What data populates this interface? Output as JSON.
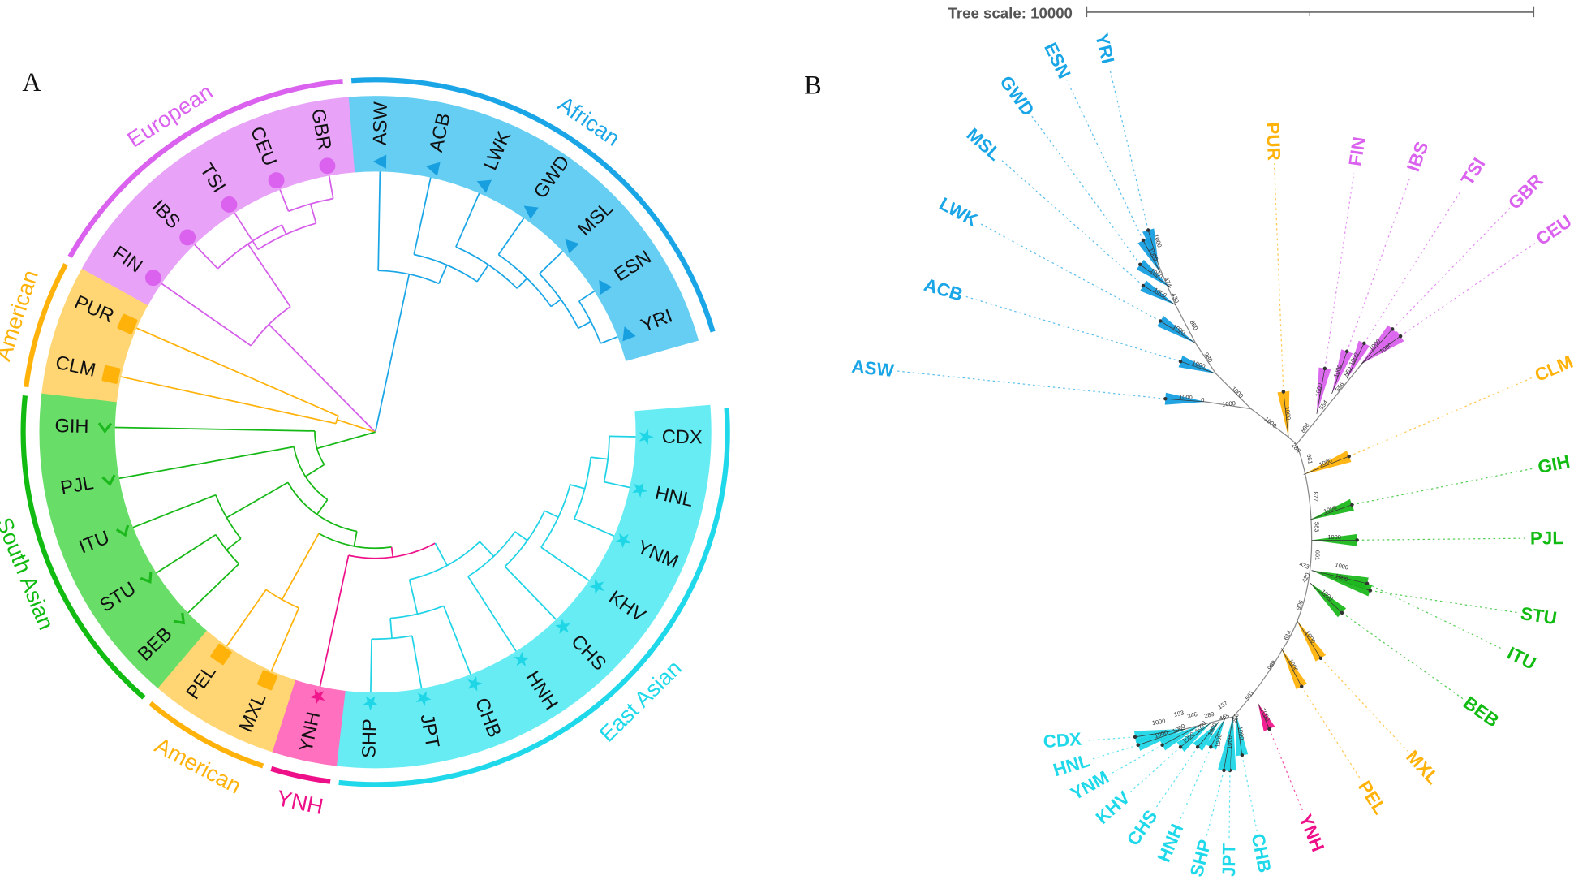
{
  "colors": {
    "African": {
      "band": "#66CEF3",
      "mark": "#179FE0",
      "arc": "#1AA6E6",
      "branch": "#1AA6E6"
    },
    "East Asian": {
      "band": "#68ECF4",
      "mark": "#1FD6E6",
      "arc": "#1FD9EA",
      "branch": "#1FD3E6"
    },
    "European": {
      "band": "#E8A2F8",
      "mark": "#DA62EE",
      "arc": "#DA62EE",
      "branch": "#D55DEA"
    },
    "American": {
      "band": "#FFD673",
      "mark": "#FFB20A",
      "arc": "#FFB20A",
      "branch": "#FFB20A"
    },
    "South Asian": {
      "band": "#68DE68",
      "mark": "#1DB81D",
      "arc": "#12BB12",
      "branch": "#16B816"
    },
    "YNH": {
      "band": "#FF70BE",
      "mark": "#F0168C",
      "arc": "#EE1088",
      "branch": "#EE1088"
    }
  },
  "panel_a": {
    "label": "A",
    "leaves": [
      {
        "name": "ASW",
        "group": "African"
      },
      {
        "name": "ACB",
        "group": "African"
      },
      {
        "name": "LWK",
        "group": "African"
      },
      {
        "name": "GWD",
        "group": "African"
      },
      {
        "name": "MSL",
        "group": "African"
      },
      {
        "name": "ESN",
        "group": "African"
      },
      {
        "name": "YRI",
        "group": "African"
      },
      {
        "name": "CDX",
        "group": "East Asian"
      },
      {
        "name": "HNL",
        "group": "East Asian"
      },
      {
        "name": "YNM",
        "group": "East Asian"
      },
      {
        "name": "KHV",
        "group": "East Asian"
      },
      {
        "name": "CHS",
        "group": "East Asian"
      },
      {
        "name": "HNH",
        "group": "East Asian"
      },
      {
        "name": "CHB",
        "group": "East Asian"
      },
      {
        "name": "JPT",
        "group": "East Asian"
      },
      {
        "name": "SHP",
        "group": "East Asian"
      },
      {
        "name": "YNH",
        "group": "YNH"
      },
      {
        "name": "MXL",
        "group": "American"
      },
      {
        "name": "PEL",
        "group": "American"
      },
      {
        "name": "BEB",
        "group": "South Asian"
      },
      {
        "name": "STU",
        "group": "South Asian"
      },
      {
        "name": "ITU",
        "group": "South Asian"
      },
      {
        "name": "PJL",
        "group": "South Asian"
      },
      {
        "name": "GIH",
        "group": "South Asian"
      },
      {
        "name": "CLM",
        "group": "American"
      },
      {
        "name": "PUR",
        "group": "American"
      },
      {
        "name": "FIN",
        "group": "European"
      },
      {
        "name": "IBS",
        "group": "European"
      },
      {
        "name": "TSI",
        "group": "European"
      },
      {
        "name": "CEU",
        "group": "European"
      },
      {
        "name": "GBR",
        "group": "European"
      }
    ],
    "group_labels": [
      {
        "text": "African",
        "group": "African"
      },
      {
        "text": "East Asian",
        "group": "East Asian"
      },
      {
        "text": "YNH",
        "group": "YNH"
      },
      {
        "text": "American",
        "group": "American"
      },
      {
        "text": "South Asian",
        "group": "South Asian"
      },
      {
        "text": "American",
        "group": "American"
      },
      {
        "text": "European",
        "group": "European"
      }
    ]
  },
  "panel_b": {
    "label": "B",
    "tree_scale": "Tree scale: 10000",
    "leaves": [
      {
        "name": "ASW",
        "group": "African"
      },
      {
        "name": "ACB",
        "group": "African"
      },
      {
        "name": "LWK",
        "group": "African"
      },
      {
        "name": "MSL",
        "group": "African"
      },
      {
        "name": "GWD",
        "group": "African"
      },
      {
        "name": "ESN",
        "group": "African"
      },
      {
        "name": "YRI",
        "group": "African"
      },
      {
        "name": "PUR",
        "group": "American"
      },
      {
        "name": "FIN",
        "group": "European"
      },
      {
        "name": "IBS",
        "group": "European"
      },
      {
        "name": "TSI",
        "group": "European"
      },
      {
        "name": "GBR",
        "group": "European"
      },
      {
        "name": "CEU",
        "group": "European"
      },
      {
        "name": "CLM",
        "group": "American"
      },
      {
        "name": "GIH",
        "group": "South Asian"
      },
      {
        "name": "PJL",
        "group": "South Asian"
      },
      {
        "name": "STU",
        "group": "South Asian"
      },
      {
        "name": "ITU",
        "group": "South Asian"
      },
      {
        "name": "BEB",
        "group": "South Asian"
      },
      {
        "name": "MXL",
        "group": "American"
      },
      {
        "name": "PEL",
        "group": "American"
      },
      {
        "name": "YNH",
        "group": "YNH"
      },
      {
        "name": "CHB",
        "group": "East Asian"
      },
      {
        "name": "JPT",
        "group": "East Asian"
      },
      {
        "name": "SHP",
        "group": "East Asian"
      },
      {
        "name": "HNH",
        "group": "East Asian"
      },
      {
        "name": "CHS",
        "group": "East Asian"
      },
      {
        "name": "KHV",
        "group": "East Asian"
      },
      {
        "name": "YNM",
        "group": "East Asian"
      },
      {
        "name": "HNL",
        "group": "East Asian"
      },
      {
        "name": "CDX",
        "group": "East Asian"
      }
    ],
    "clade_bootstrap": "1000",
    "node_bootstraps": [
      "474",
      "430",
      "850",
      "980",
      "1000",
      "1000",
      "0",
      "1000",
      "288",
      "898",
      "554",
      "556",
      "852",
      "661",
      "877",
      "583",
      "661",
      "433",
      "420",
      "906",
      "614",
      "999",
      "561",
      "465",
      "289",
      "346",
      "193",
      "157",
      "258"
    ]
  }
}
